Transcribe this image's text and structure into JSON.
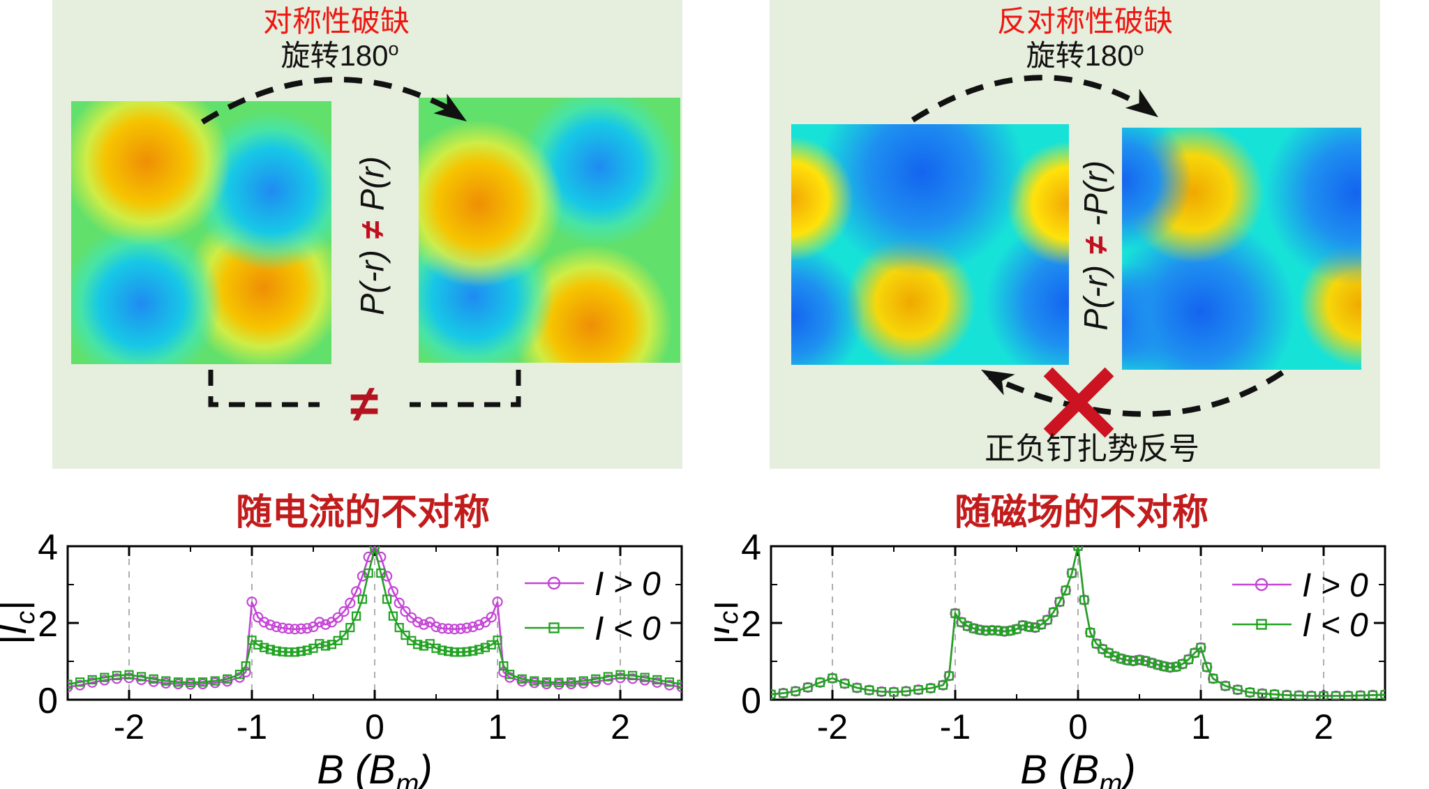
{
  "panels": {
    "left": {
      "title": "对称性破缺",
      "subtitle": {
        "text": "旋转180",
        "sup": "o"
      },
      "relation": {
        "lhs": "P(-r)",
        "operator": "≠",
        "rhs": "P(r)"
      },
      "bottom_neq": "≠"
    },
    "right": {
      "title": "反对称性破缺",
      "subtitle": {
        "text": "旋转180",
        "sup": "o"
      },
      "relation": {
        "lhs": "P(-r)",
        "operator": "≠",
        "rhs": "-P(r)"
      },
      "cross_label": "正负钉扎势反号"
    }
  },
  "colors": {
    "panel_bg": "#e6eedd",
    "panel_title_red": "#ee1511",
    "chart_title_red": "#c21b1b",
    "neq_red": "#b31220",
    "cross_red": "#cb1322",
    "series_positive": "#c444d6",
    "series_negative": "#21a221",
    "gridline_gray": "#999999"
  },
  "chart_data": [
    {
      "type": "line",
      "title": "随电流的不对称",
      "xlabel": "B (B_m)",
      "xlabel_parts": {
        "pre": "B (B",
        "sub": "m",
        "post": ")"
      },
      "ylabel": "|I_c|",
      "ylabel_parts": {
        "pre": "|I",
        "sub": "c",
        "post": "|"
      },
      "xlim": [
        -2.5,
        2.5
      ],
      "ylim": [
        0,
        4
      ],
      "xticks": [
        -2,
        -1,
        0,
        1,
        2
      ],
      "xticks_minor": [
        -1.5,
        -0.5,
        0.5,
        1.5
      ],
      "yticks": [
        0,
        2,
        4
      ],
      "yticks_minor": [
        1,
        3
      ],
      "gridlines_x": [
        -2,
        -1,
        0,
        1,
        2
      ],
      "grid": "dashed-vertical",
      "legend_position": "inside-right",
      "x": [
        -2.5,
        -2.4,
        -2.3,
        -2.2,
        -2.1,
        -2.0,
        -1.9,
        -1.8,
        -1.7,
        -1.6,
        -1.5,
        -1.4,
        -1.3,
        -1.2,
        -1.1,
        -1.05,
        -1.0,
        -0.95,
        -0.9,
        -0.85,
        -0.8,
        -0.75,
        -0.7,
        -0.65,
        -0.6,
        -0.55,
        -0.5,
        -0.45,
        -0.4,
        -0.35,
        -0.3,
        -0.25,
        -0.2,
        -0.15,
        -0.1,
        -0.05,
        0,
        0.05,
        0.1,
        0.15,
        0.2,
        0.25,
        0.3,
        0.35,
        0.4,
        0.45,
        0.5,
        0.55,
        0.6,
        0.65,
        0.7,
        0.75,
        0.8,
        0.85,
        0.9,
        0.95,
        1.0,
        1.05,
        1.1,
        1.2,
        1.3,
        1.4,
        1.5,
        1.6,
        1.7,
        1.8,
        1.9,
        2.0,
        2.1,
        2.2,
        2.3,
        2.4,
        2.5
      ],
      "series": [
        {
          "name": "I > 0",
          "color": "#c444d6",
          "marker": "circle",
          "values": [
            0.33,
            0.38,
            0.45,
            0.51,
            0.55,
            0.57,
            0.52,
            0.47,
            0.43,
            0.41,
            0.4,
            0.41,
            0.44,
            0.48,
            0.58,
            0.72,
            2.55,
            2.15,
            2.02,
            1.95,
            1.9,
            1.87,
            1.85,
            1.84,
            1.85,
            1.86,
            1.9,
            2.02,
            1.96,
            2.02,
            2.14,
            2.3,
            2.52,
            2.82,
            3.22,
            3.72,
            4.0,
            3.72,
            3.22,
            2.82,
            2.52,
            2.3,
            2.14,
            2.02,
            1.96,
            2.02,
            1.9,
            1.86,
            1.85,
            1.84,
            1.85,
            1.87,
            1.9,
            1.95,
            2.02,
            2.15,
            2.55,
            0.72,
            0.58,
            0.48,
            0.44,
            0.41,
            0.4,
            0.41,
            0.43,
            0.47,
            0.52,
            0.57,
            0.55,
            0.51,
            0.45,
            0.38,
            0.33
          ]
        },
        {
          "name": "I < 0",
          "color": "#21a221",
          "marker": "square",
          "values": [
            0.4,
            0.46,
            0.52,
            0.58,
            0.63,
            0.65,
            0.6,
            0.54,
            0.49,
            0.46,
            0.45,
            0.46,
            0.49,
            0.54,
            0.66,
            0.88,
            1.55,
            1.43,
            1.36,
            1.31,
            1.27,
            1.25,
            1.24,
            1.24,
            1.26,
            1.29,
            1.34,
            1.46,
            1.4,
            1.44,
            1.54,
            1.68,
            1.88,
            2.18,
            2.62,
            3.3,
            3.95,
            3.3,
            2.62,
            2.18,
            1.88,
            1.68,
            1.54,
            1.44,
            1.4,
            1.46,
            1.34,
            1.29,
            1.26,
            1.24,
            1.24,
            1.25,
            1.27,
            1.31,
            1.36,
            1.43,
            1.55,
            0.88,
            0.66,
            0.54,
            0.49,
            0.46,
            0.45,
            0.46,
            0.49,
            0.54,
            0.6,
            0.65,
            0.63,
            0.58,
            0.52,
            0.46,
            0.4
          ]
        }
      ]
    },
    {
      "type": "line",
      "title": "随磁场的不对称",
      "xlabel": "B (B_m)",
      "xlabel_parts": {
        "pre": "B (B",
        "sub": "m",
        "post": ")"
      },
      "ylabel": "|I_c|",
      "ylabel_parts": {
        "pre": "|I",
        "sub": "c",
        "post": "|"
      },
      "xlim": [
        -2.5,
        2.5
      ],
      "ylim": [
        0,
        4
      ],
      "xticks": [
        -2,
        -1,
        0,
        1,
        2
      ],
      "xticks_minor": [
        -1.5,
        -0.5,
        0.5,
        1.5
      ],
      "yticks": [
        0,
        2,
        4
      ],
      "yticks_minor": [
        1,
        3
      ],
      "gridlines_x": [
        -2,
        -1,
        0,
        1,
        2
      ],
      "grid": "dashed-vertical",
      "legend_position": "inside-right",
      "x": [
        -2.5,
        -2.4,
        -2.3,
        -2.2,
        -2.1,
        -2.0,
        -1.9,
        -1.8,
        -1.7,
        -1.6,
        -1.5,
        -1.4,
        -1.3,
        -1.2,
        -1.1,
        -1.05,
        -1.0,
        -0.95,
        -0.9,
        -0.85,
        -0.8,
        -0.75,
        -0.7,
        -0.65,
        -0.6,
        -0.55,
        -0.5,
        -0.45,
        -0.4,
        -0.35,
        -0.3,
        -0.25,
        -0.2,
        -0.15,
        -0.1,
        -0.05,
        0,
        0.05,
        0.1,
        0.15,
        0.2,
        0.25,
        0.3,
        0.35,
        0.4,
        0.45,
        0.5,
        0.55,
        0.6,
        0.65,
        0.7,
        0.75,
        0.8,
        0.85,
        0.9,
        0.95,
        1.0,
        1.05,
        1.1,
        1.2,
        1.3,
        1.4,
        1.5,
        1.6,
        1.7,
        1.8,
        1.9,
        2.0,
        2.1,
        2.2,
        2.3,
        2.4,
        2.5
      ],
      "series": [
        {
          "name": "I > 0",
          "color": "#c444d6",
          "marker": "circle",
          "values": [
            0.14,
            0.17,
            0.22,
            0.32,
            0.45,
            0.56,
            0.42,
            0.31,
            0.25,
            0.21,
            0.2,
            0.22,
            0.26,
            0.3,
            0.38,
            0.62,
            2.25,
            2.02,
            1.92,
            1.86,
            1.82,
            1.8,
            1.81,
            1.8,
            1.78,
            1.8,
            1.84,
            1.94,
            1.9,
            1.88,
            1.96,
            2.08,
            2.28,
            2.55,
            2.85,
            3.3,
            4.0,
            2.6,
            1.75,
            1.46,
            1.32,
            1.22,
            1.13,
            1.07,
            1.03,
            1.01,
            1.04,
            1.01,
            0.96,
            0.91,
            0.87,
            0.84,
            0.86,
            0.93,
            1.05,
            1.22,
            1.36,
            0.85,
            0.55,
            0.36,
            0.26,
            0.19,
            0.16,
            0.14,
            0.12,
            0.11,
            0.1,
            0.1,
            0.1,
            0.1,
            0.11,
            0.12,
            0.13
          ]
        },
        {
          "name": "I < 0",
          "color": "#21a221",
          "marker": "square",
          "values": [
            0.14,
            0.17,
            0.22,
            0.32,
            0.45,
            0.56,
            0.42,
            0.31,
            0.25,
            0.21,
            0.2,
            0.22,
            0.26,
            0.3,
            0.38,
            0.62,
            2.25,
            2.02,
            1.92,
            1.86,
            1.82,
            1.8,
            1.81,
            1.8,
            1.78,
            1.8,
            1.84,
            1.94,
            1.9,
            1.88,
            1.96,
            2.08,
            2.28,
            2.55,
            2.85,
            3.3,
            4.0,
            2.6,
            1.75,
            1.46,
            1.32,
            1.22,
            1.13,
            1.07,
            1.03,
            1.01,
            1.04,
            1.01,
            0.96,
            0.91,
            0.87,
            0.84,
            0.86,
            0.93,
            1.05,
            1.22,
            1.36,
            0.85,
            0.55,
            0.36,
            0.26,
            0.19,
            0.16,
            0.14,
            0.12,
            0.11,
            0.1,
            0.1,
            0.1,
            0.1,
            0.11,
            0.12,
            0.13
          ]
        }
      ]
    }
  ]
}
